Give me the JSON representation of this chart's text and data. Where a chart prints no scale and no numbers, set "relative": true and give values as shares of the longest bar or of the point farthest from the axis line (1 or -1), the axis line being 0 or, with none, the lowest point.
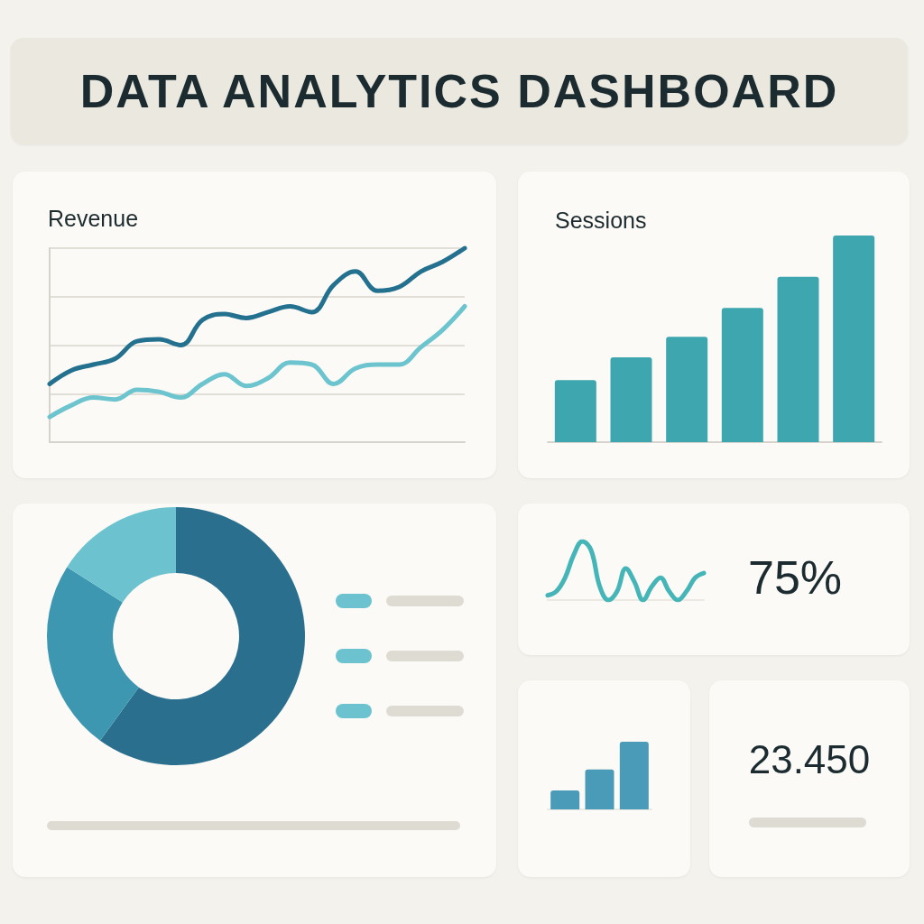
{
  "chart_data": [
    {
      "type": "other",
      "title": "DATA ANALYTICS DASHBOARD"
    },
    {
      "type": "line",
      "title": "Revenue",
      "relative": true,
      "grid": "y",
      "marker": "none",
      "categories": [
        null,
        null,
        null,
        null,
        null,
        null,
        null,
        null,
        null,
        null,
        null,
        null,
        null,
        null,
        null,
        null,
        null,
        null,
        null,
        null
      ],
      "series": [
        {
          "color": "#23708f",
          "values": [
            0.3,
            0.37,
            0.4,
            0.43,
            0.52,
            0.53,
            0.5,
            0.63,
            0.66,
            0.64,
            0.67,
            0.7,
            0.67,
            0.81,
            0.88,
            0.78,
            0.8,
            0.88,
            0.93,
            1
          ]
        },
        {
          "color": "#6cc4cf",
          "values": [
            0.13,
            0.19,
            0.23,
            0.22,
            0.27,
            0.26,
            0.23,
            0.3,
            0.35,
            0.29,
            0.33,
            0.41,
            0.4,
            0.3,
            0.38,
            0.4,
            0.4,
            0.49,
            0.58,
            0.7
          ]
        }
      ]
    },
    {
      "type": "bar",
      "title": "Sessions",
      "relative": true,
      "categories": [
        null,
        null,
        null,
        null,
        null,
        null
      ],
      "values": [
        0.3,
        0.41,
        0.51,
        0.65,
        0.8,
        1
      ],
      "color": "#3ea6ae"
    },
    {
      "type": "donut",
      "categories": [
        null,
        null,
        null
      ],
      "values": [
        60,
        24,
        16
      ],
      "colors": [
        "#2a6f8e",
        "#3d97b0",
        "#6cc3cf"
      ]
    },
    {
      "type": "line",
      "relative": true,
      "marker": "none",
      "categories": [
        null,
        null,
        null,
        null,
        null,
        null,
        null,
        null,
        null,
        null,
        null,
        null,
        null,
        null,
        null,
        null,
        null,
        null,
        null
      ],
      "values": [
        0.08,
        0.15,
        0.38,
        0.77,
        1,
        0.85,
        0.23,
        0,
        0.15,
        0.54,
        0.31,
        0,
        0.23,
        0.38,
        0.15,
        0,
        0.15,
        0.38,
        0.46
      ],
      "color": "#45b5b8",
      "annotations": [
        "75%"
      ]
    },
    {
      "type": "bar",
      "relative": true,
      "categories": [
        null,
        null,
        null
      ],
      "values": [
        0.28,
        0.59,
        1
      ],
      "color": "#4a9bb8"
    },
    {
      "type": "other",
      "annotations": [
        "23.450"
      ]
    }
  ]
}
